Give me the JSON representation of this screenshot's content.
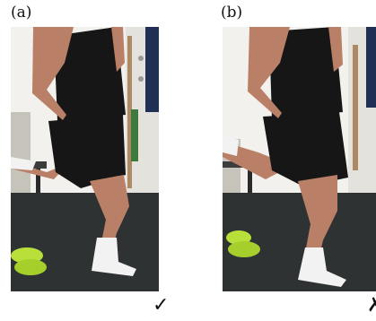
{
  "panels": [
    {
      "label": "(a)",
      "mark": "✓"
    },
    {
      "label": "(b)",
      "mark": "✗"
    }
  ],
  "colors": {
    "wall": "#ffffff",
    "carpet": "#2f3232",
    "shirt": "#161616",
    "skin": "#b98067",
    "sock": "#f2f2f2",
    "shoes": "#b9e03a"
  }
}
